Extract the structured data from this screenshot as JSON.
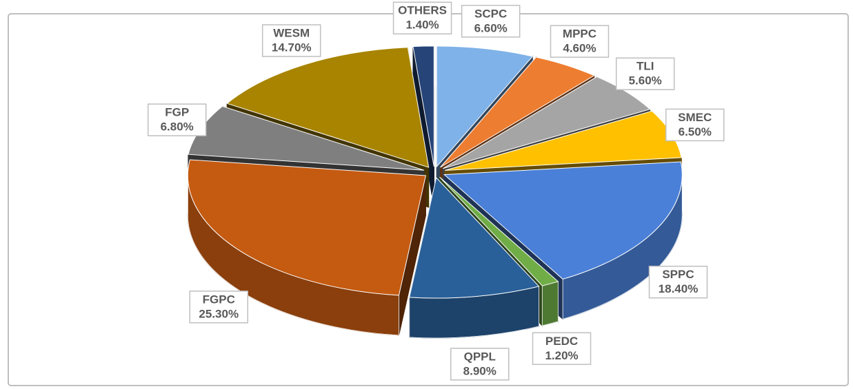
{
  "chart_data": {
    "type": "pie",
    "categories": [
      "SCPC",
      "MPPC",
      "TLI",
      "SMEC",
      "SPPC",
      "PEDC",
      "QPPL",
      "FGPC",
      "FGP",
      "WESM",
      "OTHERS"
    ],
    "values": [
      6.6,
      4.6,
      5.6,
      6.5,
      18.4,
      1.2,
      8.9,
      25.3,
      6.8,
      14.7,
      1.4
    ],
    "value_labels": [
      "6.60%",
      "4.60%",
      "5.60%",
      "6.50%",
      "18.40%",
      "1.20%",
      "8.90%",
      "25.30%",
      "6.80%",
      "14.70%",
      "1.40%"
    ],
    "colors": [
      "#7fb2e8",
      "#ed7d31",
      "#a5a5a5",
      "#ffc000",
      "#4a80d8",
      "#70ad47",
      "#2a6099",
      "#c55a11",
      "#7f7f7f",
      "#a88400",
      "#264478"
    ]
  }
}
